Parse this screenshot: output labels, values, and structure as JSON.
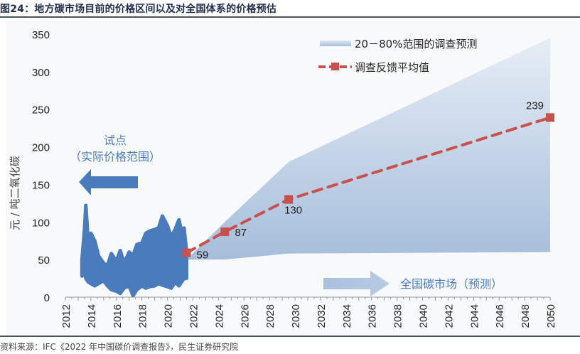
{
  "figure": {
    "title": "图24：地方碳市场目前的价格区间以及对全国体系的价格预估",
    "source": "资料来源：IFC《2022 年中国碳价调查报告》，民生证券研究院"
  },
  "chart_data": {
    "type": "area",
    "title": "",
    "xlabel": "",
    "ylabel": "元 / 吨二氧化碳",
    "xlim": [
      2012,
      2050
    ],
    "ylim": [
      0,
      350
    ],
    "y_ticks": [
      "0",
      "50",
      "100",
      "150",
      "200",
      "250",
      "300",
      "350"
    ],
    "x_ticks": [
      "2012",
      "2014",
      "2016",
      "2018",
      "2020",
      "2022",
      "2024",
      "2026",
      "2028",
      "2030",
      "2032",
      "2034",
      "2036",
      "2038",
      "2040",
      "2042",
      "2044",
      "2046",
      "2048",
      "2050"
    ],
    "legend": {
      "placement": "top-right",
      "entries": [
        "20－80%范围的调查预测",
        "调查反馈平均值"
      ]
    },
    "series": [
      {
        "name": "20－80%范围的调查预测",
        "type": "band",
        "color": "#a9bfdc",
        "x": [
          2021.5,
          2024.5,
          2029.5,
          2050
        ],
        "lower": [
          50,
          50,
          58,
          60
        ],
        "upper": [
          50,
          100,
          180,
          345
        ]
      },
      {
        "name": "调查反馈平均值",
        "type": "line",
        "style": "dashed",
        "marker": "square",
        "color": "#c9504d",
        "x": [
          2021.5,
          2024.5,
          2029.5,
          2050
        ],
        "values": [
          59,
          87,
          130,
          239
        ],
        "labels": [
          "59",
          "87",
          "130",
          "239"
        ]
      },
      {
        "name": "试点实际价格范围",
        "type": "area",
        "color": "#4a7bbd",
        "x": [
          2013.3,
          2013.5,
          2013.6,
          2013.8,
          2014.0,
          2014.3,
          2014.6,
          2015.0,
          2015.3,
          2015.6,
          2016.0,
          2016.3,
          2016.6,
          2017.0,
          2017.3,
          2017.6,
          2018.0,
          2018.3,
          2018.6,
          2019.0,
          2019.3,
          2019.6,
          2020.0,
          2020.3,
          2020.6,
          2020.9,
          2021.1,
          2021.3,
          2021.5
        ],
        "upper": [
          50,
          90,
          122,
          70,
          85,
          75,
          55,
          45,
          42,
          58,
          48,
          62,
          45,
          60,
          55,
          70,
          72,
          85,
          88,
          90,
          92,
          108,
          95,
          80,
          90,
          103,
          88,
          92,
          60
        ],
        "lower": [
          28,
          35,
          25,
          20,
          18,
          15,
          18,
          22,
          15,
          10,
          8,
          5,
          12,
          15,
          2,
          10,
          15,
          12,
          14,
          15,
          18,
          16,
          14,
          12,
          20,
          15,
          20,
          25,
          25
        ]
      }
    ],
    "annotations": [
      {
        "text_line1": "试点",
        "text_line2": "（实际价格范围）",
        "arrow": "left",
        "color": "#4a7bbd"
      },
      {
        "text": "全国碳市场（预测）",
        "arrow": "right",
        "color": "#4a7bbd"
      }
    ]
  }
}
